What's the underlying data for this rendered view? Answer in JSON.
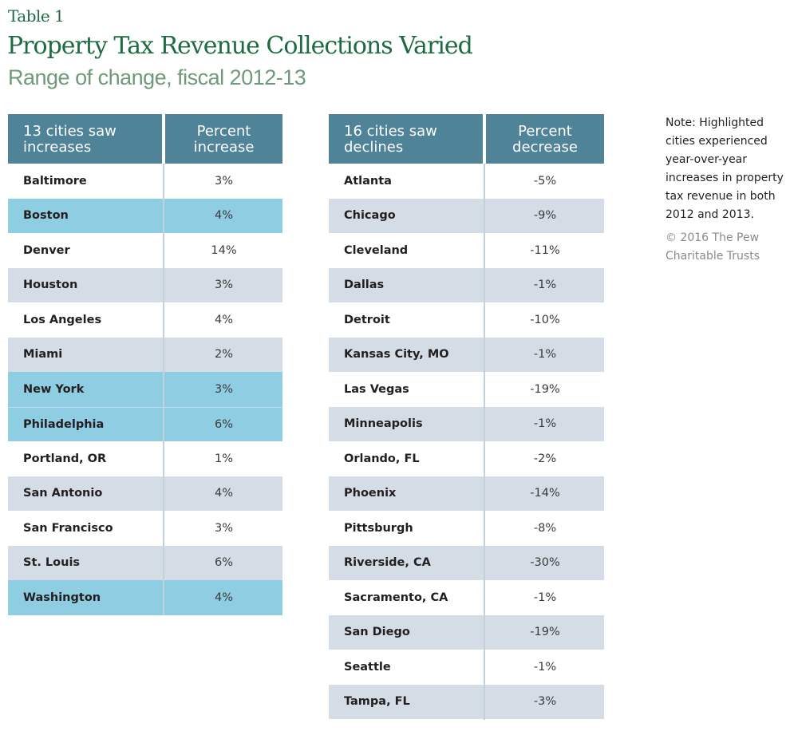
{
  "header": {
    "eyebrow": "Table 1",
    "title": "Property Tax Revenue Collections Varied",
    "subtitle": "Range of change, fiscal 2012-13"
  },
  "colors": {
    "title_green": "#1d6b40",
    "subtitle_green": "#6e9a79",
    "header_bg": "#4f8397",
    "alt_row_bg": "#d4dce5",
    "highlight_bg": "#8fcde3"
  },
  "increases": {
    "col1_line1": "13 cities saw",
    "col1_line2": "increases",
    "col2_line1": "Percent",
    "col2_line2": "increase",
    "rows": [
      {
        "city": "Baltimore",
        "value": "3%",
        "highlight": false
      },
      {
        "city": "Boston",
        "value": "4%",
        "highlight": true
      },
      {
        "city": "Denver",
        "value": "14%",
        "highlight": false
      },
      {
        "city": "Houston",
        "value": "3%",
        "highlight": false
      },
      {
        "city": "Los Angeles",
        "value": "4%",
        "highlight": false
      },
      {
        "city": "Miami",
        "value": "2%",
        "highlight": false
      },
      {
        "city": "New York",
        "value": "3%",
        "highlight": true
      },
      {
        "city": "Philadelphia",
        "value": "6%",
        "highlight": true
      },
      {
        "city": "Portland, OR",
        "value": "1%",
        "highlight": false
      },
      {
        "city": "San Antonio",
        "value": "4%",
        "highlight": false
      },
      {
        "city": "San Francisco",
        "value": "3%",
        "highlight": false
      },
      {
        "city": "St. Louis",
        "value": "6%",
        "highlight": false
      },
      {
        "city": "Washington",
        "value": "4%",
        "highlight": true
      }
    ]
  },
  "declines": {
    "col1_line1": "16 cities saw",
    "col1_line2": "declines",
    "col2_line1": "Percent",
    "col2_line2": "decrease",
    "rows": [
      {
        "city": "Atlanta",
        "value": "-5%",
        "highlight": false
      },
      {
        "city": "Chicago",
        "value": "-9%",
        "highlight": false
      },
      {
        "city": "Cleveland",
        "value": "-11%",
        "highlight": false
      },
      {
        "city": "Dallas",
        "value": "-1%",
        "highlight": false
      },
      {
        "city": "Detroit",
        "value": "-10%",
        "highlight": false
      },
      {
        "city": "Kansas City, MO",
        "value": "-1%",
        "highlight": false
      },
      {
        "city": "Las Vegas",
        "value": "-19%",
        "highlight": false
      },
      {
        "city": "Minneapolis",
        "value": "-1%",
        "highlight": false
      },
      {
        "city": "Orlando, FL",
        "value": "-2%",
        "highlight": false
      },
      {
        "city": "Phoenix",
        "value": "-14%",
        "highlight": false
      },
      {
        "city": "Pittsburgh",
        "value": "-8%",
        "highlight": false
      },
      {
        "city": "Riverside, CA",
        "value": "-30%",
        "highlight": false
      },
      {
        "city": "Sacramento, CA",
        "value": "-1%",
        "highlight": false
      },
      {
        "city": "San Diego",
        "value": "-19%",
        "highlight": false
      },
      {
        "city": "Seattle",
        "value": "-1%",
        "highlight": false
      },
      {
        "city": "Tampa, FL",
        "value": "-3%",
        "highlight": false
      }
    ]
  },
  "note": "Note: Highlighted cities experienced year-over-year increases in property tax revenue in both 2012 and 2013.",
  "credit": "© 2016 The Pew Charitable Trusts"
}
